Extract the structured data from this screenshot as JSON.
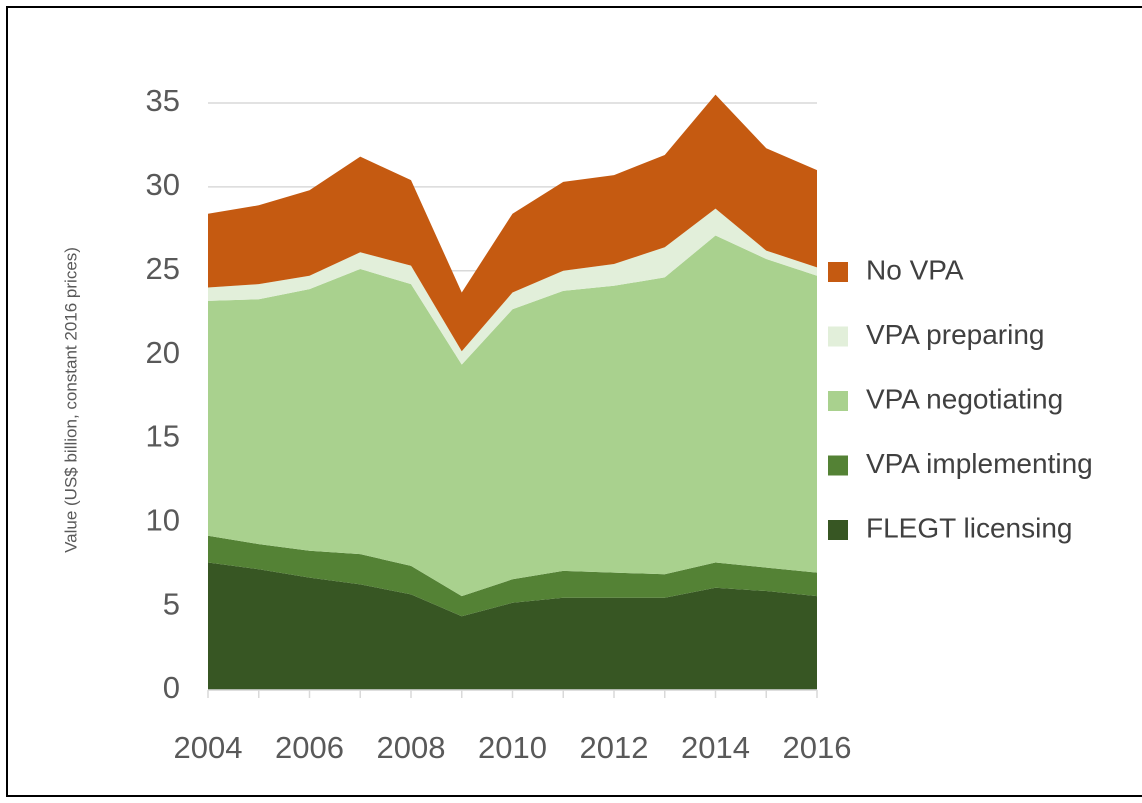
{
  "chart_data": {
    "type": "stacked_area",
    "y_label": "Value (US$ billion, constant 2016 prices)",
    "x": [
      2004,
      2005,
      2006,
      2007,
      2008,
      2009,
      2010,
      2011,
      2012,
      2013,
      2014,
      2015,
      2016
    ],
    "series": [
      {
        "name": "FLEGT licensing",
        "color": "#375623",
        "values": [
          7.6,
          7.2,
          6.7,
          6.3,
          5.7,
          4.4,
          5.2,
          5.5,
          5.5,
          5.5,
          6.1,
          5.9,
          5.6
        ]
      },
      {
        "name": "VPA implementing",
        "color": "#548235",
        "values": [
          1.6,
          1.5,
          1.6,
          1.8,
          1.7,
          1.2,
          1.4,
          1.6,
          1.5,
          1.4,
          1.5,
          1.4,
          1.4
        ]
      },
      {
        "name": "VPA negotiating",
        "color": "#a9d18e",
        "values": [
          14.0,
          14.6,
          15.6,
          17.0,
          16.8,
          13.8,
          16.1,
          16.7,
          17.1,
          17.7,
          19.5,
          18.4,
          17.7
        ]
      },
      {
        "name": "VPA preparing",
        "color": "#e2efda",
        "values": [
          0.8,
          0.9,
          0.8,
          1.0,
          1.1,
          0.8,
          1.0,
          1.2,
          1.3,
          1.8,
          1.6,
          0.5,
          0.5
        ]
      },
      {
        "name": "No VPA",
        "color": "#c55a11",
        "values": [
          4.4,
          4.7,
          5.1,
          5.7,
          5.1,
          3.5,
          4.7,
          5.3,
          5.3,
          5.5,
          6.8,
          6.1,
          5.8
        ]
      }
    ],
    "xlim": [
      2004,
      2016
    ],
    "xticks": [
      2004,
      2006,
      2008,
      2010,
      2012,
      2014,
      2016
    ],
    "ylim": [
      0,
      35
    ],
    "yticks": [
      0,
      5,
      10,
      15,
      20,
      25,
      30,
      35
    ],
    "grid": true,
    "legend": "right"
  }
}
